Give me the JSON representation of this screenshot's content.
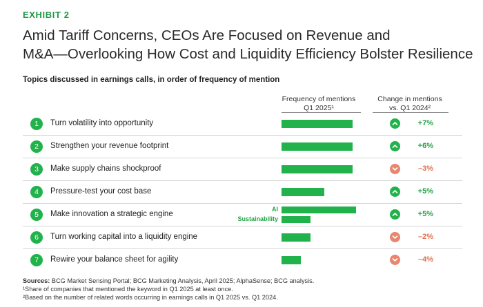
{
  "exhibit": "EXHIBIT 2",
  "title_line1": "Amid Tariff Concerns, CEOs Are Focused on Revenue and",
  "title_line2": "M&A—Overlooking How Cost and Liquidity Efficiency Bolster Resilience",
  "subtitle": "Topics discussed in earnings calls, in order of frequency of mention",
  "columns": {
    "freq_line1": "Frequency of mentions",
    "freq_line2": "Q1 2025¹",
    "change_line1": "Change in mentions",
    "change_line2": "vs. Q1 2024²"
  },
  "colors": {
    "accent": "#22b24c",
    "up": "#22b24c",
    "down": "#e8866e",
    "down_text": "#e2704f"
  },
  "chart_data": {
    "type": "bar",
    "title": "Topics discussed in earnings calls, in order of frequency of mention",
    "x_unit": "relative frequency of mentions (unlabeled axis, estimated)",
    "rows": [
      {
        "rank": "1",
        "topic": "Turn volatility into opportunity",
        "bars": [
          {
            "label": "",
            "value": 0.95
          }
        ],
        "change": "+7%",
        "direction": "up"
      },
      {
        "rank": "2",
        "topic": "Strengthen your revenue footprint",
        "bars": [
          {
            "label": "",
            "value": 0.95
          }
        ],
        "change": "+6%",
        "direction": "up"
      },
      {
        "rank": "3",
        "topic": "Make supply chains shockproof",
        "bars": [
          {
            "label": "",
            "value": 0.95
          }
        ],
        "change": "–3%",
        "direction": "down"
      },
      {
        "rank": "4",
        "topic": "Pressure-test your cost base",
        "bars": [
          {
            "label": "",
            "value": 0.57
          }
        ],
        "change": "+5%",
        "direction": "up"
      },
      {
        "rank": "5",
        "topic": "Make innovation a strategic engine",
        "bars": [
          {
            "label": "AI",
            "value": 1.0
          },
          {
            "label": "Sustainability",
            "value": 0.39
          }
        ],
        "change": "+5%",
        "direction": "up"
      },
      {
        "rank": "6",
        "topic": "Turn working capital into a liquidity engine",
        "bars": [
          {
            "label": "",
            "value": 0.39
          }
        ],
        "change": "–2%",
        "direction": "down"
      },
      {
        "rank": "7",
        "topic": "Rewire your balance sheet for agility",
        "bars": [
          {
            "label": "",
            "value": 0.26
          }
        ],
        "change": "–4%",
        "direction": "down"
      }
    ]
  },
  "sources": {
    "label": "Sources:",
    "text": " BCG Market Sensing Portal; BCG Marketing Analysis, April 2025; AlphaSense; BCG analysis.",
    "note1": "¹Share of companies that mentioned the keyword in Q1 2025 at least once.",
    "note2": "²Based on the number of related words occurring in earnings calls in Q1 2025 vs. Q1 2024."
  }
}
